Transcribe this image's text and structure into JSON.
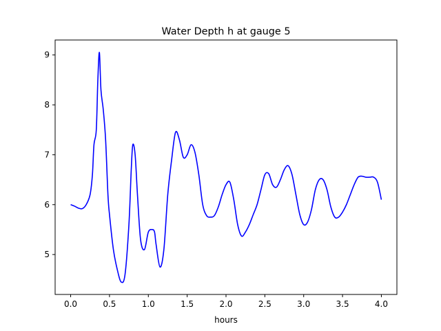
{
  "chart_data": {
    "type": "line",
    "title": "Water Depth h at gauge 5",
    "xlabel": "hours",
    "ylabel": "",
    "xlim": [
      -0.2,
      4.2
    ],
    "ylim": [
      4.2,
      9.3
    ],
    "xticks": [
      0.0,
      0.5,
      1.0,
      1.5,
      2.0,
      2.5,
      3.0,
      3.5,
      4.0
    ],
    "xtick_labels": [
      "0.0",
      "0.5",
      "1.0",
      "1.5",
      "2.0",
      "2.5",
      "3.0",
      "3.5",
      "4.0"
    ],
    "yticks": [
      5,
      6,
      7,
      8,
      9
    ],
    "ytick_labels": [
      "5",
      "6",
      "7",
      "8",
      "9"
    ],
    "grid": false,
    "legend": "none",
    "series": [
      {
        "color": "#0000ff",
        "x": [
          0.0,
          0.05,
          0.1,
          0.15,
          0.2,
          0.25,
          0.28,
          0.3,
          0.33,
          0.35,
          0.37,
          0.39,
          0.42,
          0.45,
          0.48,
          0.5,
          0.55,
          0.6,
          0.65,
          0.7,
          0.75,
          0.78,
          0.8,
          0.83,
          0.86,
          0.9,
          0.95,
          1.0,
          1.05,
          1.08,
          1.1,
          1.15,
          1.2,
          1.25,
          1.3,
          1.35,
          1.4,
          1.45,
          1.5,
          1.55,
          1.6,
          1.65,
          1.7,
          1.75,
          1.8,
          1.85,
          1.9,
          1.95,
          2.0,
          2.05,
          2.1,
          2.15,
          2.2,
          2.25,
          2.3,
          2.35,
          2.4,
          2.45,
          2.5,
          2.55,
          2.6,
          2.65,
          2.7,
          2.75,
          2.8,
          2.85,
          2.9,
          2.95,
          3.0,
          3.05,
          3.1,
          3.15,
          3.2,
          3.25,
          3.3,
          3.35,
          3.4,
          3.45,
          3.5,
          3.55,
          3.6,
          3.65,
          3.7,
          3.75,
          3.8,
          3.85,
          3.9,
          3.95,
          4.0
        ],
        "y": [
          6.0,
          5.97,
          5.93,
          5.92,
          6.0,
          6.2,
          6.6,
          7.2,
          7.5,
          8.5,
          9.05,
          8.3,
          7.9,
          7.3,
          6.2,
          5.8,
          5.1,
          4.7,
          4.45,
          4.6,
          5.6,
          6.7,
          7.2,
          7.0,
          6.2,
          5.3,
          5.1,
          5.45,
          5.5,
          5.45,
          5.2,
          4.75,
          5.1,
          6.2,
          6.9,
          7.45,
          7.3,
          6.95,
          7.0,
          7.2,
          7.05,
          6.6,
          6.0,
          5.78,
          5.75,
          5.78,
          5.95,
          6.2,
          6.4,
          6.45,
          6.1,
          5.6,
          5.37,
          5.45,
          5.6,
          5.8,
          6.0,
          6.3,
          6.6,
          6.62,
          6.4,
          6.35,
          6.5,
          6.7,
          6.78,
          6.6,
          6.2,
          5.8,
          5.6,
          5.65,
          5.9,
          6.3,
          6.5,
          6.5,
          6.3,
          5.95,
          5.75,
          5.75,
          5.85,
          6.0,
          6.2,
          6.4,
          6.55,
          6.57,
          6.55,
          6.55,
          6.55,
          6.45,
          6.1
        ]
      }
    ]
  }
}
